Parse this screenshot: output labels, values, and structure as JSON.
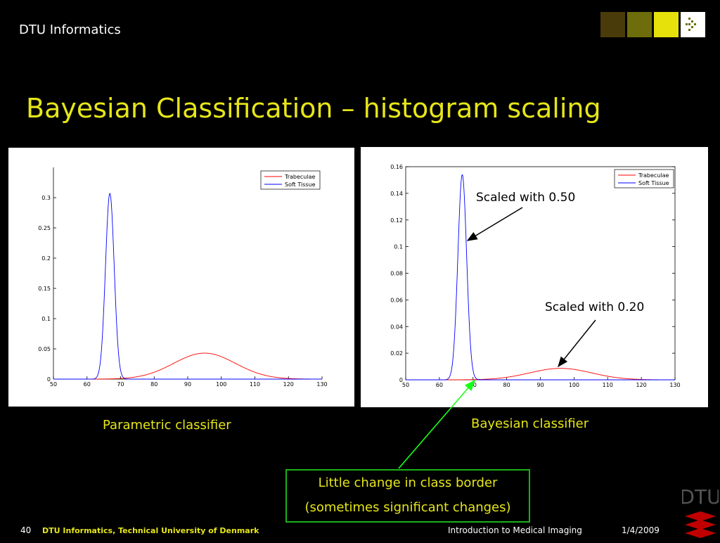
{
  "header": {
    "org": "DTU Informatics"
  },
  "logo_colors": [
    "#4a3b0a",
    "#6e6d0c",
    "#e6e10b",
    "#ffffff"
  ],
  "slide": {
    "title": "Bayesian Classification – histogram scaling"
  },
  "captions": {
    "left": "Parametric classifier",
    "right": "Bayesian classifier"
  },
  "annotations": {
    "scaled_050": "Scaled with 0.50",
    "scaled_020": "Scaled with 0.20",
    "box_line1": "Little change in class border",
    "box_line2": "(sometimes significant changes)"
  },
  "footer": {
    "page": "40",
    "left": "DTU Informatics, Technical University of Denmark",
    "center": "Introduction to Medical Imaging",
    "date": "1/4/2009"
  },
  "dtu_logo_text": "DTU",
  "chart_data": [
    {
      "type": "line",
      "xlim": [
        50,
        130
      ],
      "ylim": [
        0,
        0.35
      ],
      "xticks": [
        "50",
        "60",
        "70",
        "80",
        "90",
        "100",
        "110",
        "120",
        "130"
      ],
      "yticks": [
        "0",
        "0.05",
        "0.1",
        "0.15",
        "0.2",
        "0.25",
        "0.3"
      ],
      "legend_position": "top-right",
      "series": [
        {
          "name": "Trabeculae",
          "color": "#ff0000",
          "mean": 95,
          "sd": 9.2,
          "peak": 0.043
        },
        {
          "name": "Soft Tissue",
          "color": "#0000ff",
          "mean": 66.8,
          "sd": 1.3,
          "peak": 0.307
        }
      ]
    },
    {
      "type": "line",
      "xlim": [
        50,
        130
      ],
      "ylim": [
        0,
        0.16
      ],
      "xticks": [
        "50",
        "60",
        "70",
        "80",
        "90",
        "100",
        "110",
        "120",
        "130"
      ],
      "yticks": [
        "0",
        "0.02",
        "0.04",
        "0.06",
        "0.08",
        "0.1",
        "0.12",
        "0.14",
        "0.16"
      ],
      "legend_position": "top-right",
      "series": [
        {
          "name": "Trabeculae",
          "color": "#ff0000",
          "mean": 96,
          "sd": 9.2,
          "peak": 0.0086
        },
        {
          "name": "Soft Tissue",
          "color": "#0000ff",
          "mean": 66.8,
          "sd": 1.3,
          "peak": 0.154
        }
      ]
    }
  ]
}
